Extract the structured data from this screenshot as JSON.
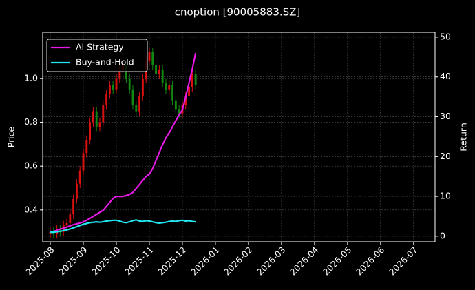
{
  "chart_data": {
    "type": "candlestick",
    "title": "cnoption [90005883.SZ]",
    "ylabel": "Price",
    "y2label": "Return",
    "x": [
      0,
      0.1,
      0.2,
      0.3,
      0.4,
      0.5,
      0.6,
      0.7,
      0.8,
      0.9,
      1.0,
      1.1,
      1.2,
      1.3,
      1.4,
      1.5,
      1.6,
      1.7,
      1.8,
      1.9,
      2.0,
      2.1,
      2.2,
      2.3,
      2.4,
      2.5,
      2.6,
      2.7,
      2.8,
      2.9,
      3.0,
      3.1,
      3.2,
      3.3,
      3.4,
      3.5,
      3.6,
      3.7,
      3.8,
      3.9,
      4.0,
      4.1,
      4.2,
      4.3,
      4.4
    ],
    "open": [
      0.29,
      0.3,
      0.29,
      0.31,
      0.3,
      0.33,
      0.34,
      0.38,
      0.45,
      0.52,
      0.58,
      0.66,
      0.72,
      0.8,
      0.85,
      0.78,
      0.8,
      0.88,
      0.93,
      0.97,
      0.95,
      1.0,
      1.04,
      1.06,
      1.0,
      0.95,
      0.88,
      0.85,
      0.92,
      1.0,
      1.08,
      1.12,
      1.06,
      1.02,
      1.04,
      0.98,
      0.95,
      0.97,
      0.9,
      0.86,
      0.84,
      0.88,
      0.92,
      0.96,
      1.02
    ],
    "high": [
      0.32,
      0.32,
      0.33,
      0.33,
      0.35,
      0.36,
      0.4,
      0.47,
      0.54,
      0.6,
      0.68,
      0.74,
      0.82,
      0.87,
      0.87,
      0.82,
      0.9,
      0.95,
      0.99,
      0.99,
      1.02,
      1.06,
      1.08,
      1.08,
      1.02,
      0.97,
      0.9,
      0.94,
      1.02,
      1.1,
      1.14,
      1.14,
      1.08,
      1.06,
      1.06,
      1.0,
      0.99,
      0.99,
      0.92,
      0.88,
      0.9,
      0.94,
      0.98,
      1.04,
      1.04
    ],
    "low": [
      0.27,
      0.27,
      0.27,
      0.28,
      0.28,
      0.31,
      0.32,
      0.36,
      0.43,
      0.5,
      0.56,
      0.64,
      0.7,
      0.78,
      0.76,
      0.76,
      0.78,
      0.86,
      0.91,
      0.93,
      0.93,
      0.98,
      1.02,
      0.98,
      0.93,
      0.86,
      0.83,
      0.83,
      0.9,
      0.98,
      1.06,
      1.04,
      1.0,
      1.0,
      0.96,
      0.93,
      0.93,
      0.88,
      0.84,
      0.82,
      0.82,
      0.86,
      0.9,
      0.94,
      0.95
    ],
    "close": [
      0.3,
      0.29,
      0.31,
      0.3,
      0.33,
      0.34,
      0.38,
      0.45,
      0.52,
      0.58,
      0.66,
      0.72,
      0.8,
      0.85,
      0.78,
      0.8,
      0.88,
      0.93,
      0.97,
      0.95,
      1.0,
      1.04,
      1.06,
      1.0,
      0.95,
      0.88,
      0.85,
      0.92,
      1.0,
      1.08,
      1.12,
      1.06,
      1.02,
      1.04,
      0.98,
      0.95,
      0.97,
      0.9,
      0.86,
      0.84,
      0.88,
      0.92,
      0.96,
      1.02,
      0.97
    ],
    "up_color": "#dd1111",
    "down_color": "#118811",
    "series": [
      {
        "name": "AI Strategy",
        "color": "#e619e6",
        "axis": "y2",
        "values": [
          1.0,
          1.2,
          1.5,
          1.8,
          2.0,
          2.3,
          2.6,
          2.9,
          3.1,
          3.3,
          3.6,
          4.0,
          4.5,
          5.0,
          5.5,
          6.0,
          6.5,
          7.5,
          8.5,
          9.5,
          10.0,
          10.0,
          10.0,
          10.2,
          10.5,
          11.0,
          12.0,
          13.0,
          14.0,
          15.0,
          15.6,
          17.0,
          19.0,
          21.0,
          23.0,
          24.7,
          26.0,
          27.5,
          29.0,
          30.5,
          31.7,
          35.0,
          38.5,
          42.0,
          46.0
        ]
      },
      {
        "name": "Buy-and-Hold",
        "color": "#22e6f0",
        "axis": "y2",
        "values": [
          1.0,
          1.0,
          1.1,
          1.2,
          1.4,
          1.6,
          1.8,
          2.1,
          2.4,
          2.7,
          3.0,
          3.2,
          3.4,
          3.5,
          3.6,
          3.5,
          3.6,
          3.8,
          3.9,
          4.0,
          4.0,
          3.8,
          3.5,
          3.4,
          3.6,
          3.9,
          4.1,
          3.8,
          3.7,
          3.9,
          3.8,
          3.6,
          3.4,
          3.3,
          3.4,
          3.5,
          3.7,
          3.8,
          3.7,
          3.9,
          4.0,
          3.8,
          3.9,
          3.7,
          3.6
        ]
      }
    ],
    "xlim": [
      -0.23,
      11.65
    ],
    "xticks": [
      {
        "value": 0,
        "label": "2025-08"
      },
      {
        "value": 1,
        "label": "2025-09"
      },
      {
        "value": 2,
        "label": "2025-10"
      },
      {
        "value": 3,
        "label": "2025-11"
      },
      {
        "value": 4,
        "label": "2025-12"
      },
      {
        "value": 5,
        "label": "2026-01"
      },
      {
        "value": 6,
        "label": "2026-02"
      },
      {
        "value": 7,
        "label": "2026-03"
      },
      {
        "value": 8,
        "label": "2026-04"
      },
      {
        "value": 9,
        "label": "2026-05"
      },
      {
        "value": 10,
        "label": "2026-06"
      },
      {
        "value": 11,
        "label": "2026-07"
      }
    ],
    "ylim": [
      0.255,
      1.21
    ],
    "yticks": [
      0.4,
      0.6,
      0.8,
      {
        "value": 1,
        "label": "1.0"
      }
    ],
    "y2lim": [
      -1.4,
      51.2
    ],
    "y2ticks": [
      0,
      10,
      20,
      30,
      40,
      50
    ],
    "grid": true,
    "legend": "upper left"
  }
}
